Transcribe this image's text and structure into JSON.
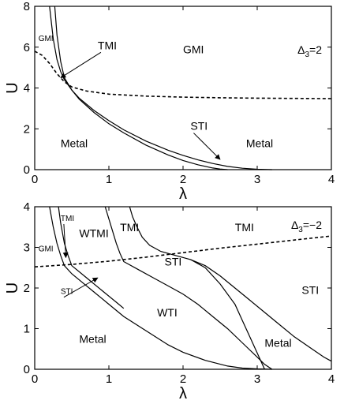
{
  "chart_data": [
    {
      "type": "line",
      "title": "",
      "xlabel": "λ",
      "ylabel": "U",
      "xlim": [
        0,
        4
      ],
      "ylim": [
        0,
        8
      ],
      "xticks": [
        "0",
        "1",
        "2",
        "3",
        "4"
      ],
      "yticks": [
        "0",
        "2",
        "4",
        "6",
        "8"
      ],
      "annotation": "Δ3=2",
      "regions": [
        {
          "label": "GMI",
          "x": 2.0,
          "y": 5.7
        },
        {
          "label": "Metal",
          "x": 0.35,
          "y": 1.1
        },
        {
          "label": "Metal",
          "x": 2.85,
          "y": 1.1
        },
        {
          "label": "TMI",
          "x": 0.85,
          "y": 5.9,
          "arrow_to": [
            0.35,
            4.5
          ]
        },
        {
          "label": "STI",
          "x": 2.1,
          "y": 1.95,
          "arrow_to": [
            2.5,
            0.5
          ]
        },
        {
          "label": "GMI",
          "x": 0.05,
          "y": 6.3,
          "small": true
        }
      ],
      "series": [
        {
          "style": "solid",
          "x": [
            0.2,
            0.25,
            0.3,
            0.35,
            0.4,
            0.5,
            0.6,
            0.8,
            1.0,
            1.2,
            1.5,
            1.8,
            2.0,
            2.2,
            2.4,
            2.6,
            2.8,
            3.0,
            3.2
          ],
          "y": [
            8,
            6.4,
            5.4,
            4.8,
            4.4,
            3.9,
            3.5,
            2.9,
            2.4,
            1.95,
            1.4,
            0.95,
            0.7,
            0.48,
            0.3,
            0.16,
            0.07,
            0.02,
            0
          ]
        },
        {
          "style": "solid",
          "x": [
            0.27,
            0.3,
            0.35,
            0.4,
            0.5,
            0.6,
            0.8,
            1.0,
            1.2,
            1.5,
            1.8,
            2.0,
            2.2,
            2.4,
            2.5,
            2.6
          ],
          "y": [
            8,
            6.6,
            5.3,
            4.5,
            3.9,
            3.45,
            2.8,
            2.25,
            1.8,
            1.2,
            0.72,
            0.45,
            0.24,
            0.08,
            0.03,
            0
          ]
        },
        {
          "style": "dashed",
          "x": [
            0,
            0.1,
            0.2,
            0.3,
            0.4,
            0.5,
            0.7,
            1.0,
            1.5,
            2.0,
            2.5,
            3.0,
            3.5,
            4.0
          ],
          "y": [
            5.8,
            5.6,
            5.2,
            4.7,
            4.3,
            4.05,
            3.85,
            3.7,
            3.6,
            3.55,
            3.52,
            3.5,
            3.49,
            3.48
          ]
        }
      ]
    },
    {
      "type": "line",
      "title": "",
      "xlabel": "λ",
      "ylabel": "U",
      "xlim": [
        0,
        4
      ],
      "ylim": [
        0,
        4
      ],
      "xticks": [
        "0",
        "1",
        "2",
        "3",
        "4"
      ],
      "yticks": [
        "0",
        "1",
        "2",
        "3",
        "4"
      ],
      "annotation": "Δ3=−2",
      "regions": [
        {
          "label": "TMI",
          "x": 2.7,
          "y": 3.4
        },
        {
          "label": "WTMI",
          "x": 0.6,
          "y": 3.25
        },
        {
          "label": "TMI",
          "x": 1.15,
          "y": 3.4
        },
        {
          "label": "STI",
          "x": 1.75,
          "y": 2.55
        },
        {
          "label": "STI",
          "x": 3.6,
          "y": 1.85
        },
        {
          "label": "WTI",
          "x": 1.65,
          "y": 1.3
        },
        {
          "label": "Metal",
          "x": 0.6,
          "y": 0.65
        },
        {
          "label": "Metal",
          "x": 3.1,
          "y": 0.55
        },
        {
          "label": "TMI",
          "x": 0.35,
          "y": 3.65,
          "arrow_to": [
            0.42,
            2.75
          ],
          "small": true
        },
        {
          "label": "GMI",
          "x": 0.05,
          "y": 2.9,
          "small": true
        },
        {
          "label": "STI",
          "x": 0.35,
          "y": 1.85,
          "arrow_to": [
            0.85,
            2.25
          ],
          "small": true
        }
      ],
      "series": [
        {
          "style": "solid",
          "x": [
            0.2,
            0.25,
            0.3,
            0.35,
            0.4,
            0.5,
            0.6,
            0.8,
            1.0,
            1.2,
            1.5,
            1.8,
            2.0,
            2.3,
            2.6,
            2.8,
            3.0,
            3.2
          ],
          "y": [
            4,
            3.5,
            3.1,
            2.8,
            2.55,
            2.35,
            2.2,
            1.9,
            1.6,
            1.3,
            0.95,
            0.6,
            0.42,
            0.22,
            0.08,
            0.03,
            0.01,
            0
          ]
        },
        {
          "style": "solid",
          "x": [
            0.32,
            0.35,
            0.4,
            0.45,
            0.5,
            0.7,
            0.9,
            1.1,
            1.2
          ],
          "y": [
            4,
            3.6,
            3.1,
            2.8,
            2.55,
            2.25,
            1.95,
            1.65,
            1.5
          ]
        },
        {
          "style": "solid",
          "x": [
            0.95,
            1.0,
            1.05,
            1.1,
            1.15,
            1.2,
            1.4,
            1.6,
            1.8,
            2.0,
            2.2,
            2.4,
            2.6,
            2.8,
            3.0,
            3.1,
            3.2
          ],
          "y": [
            4,
            3.7,
            3.4,
            3.1,
            2.85,
            2.65,
            2.45,
            2.25,
            2.05,
            1.85,
            1.6,
            1.3,
            1.0,
            0.65,
            0.3,
            0.12,
            0
          ]
        },
        {
          "style": "solid",
          "x": [
            1.28,
            1.32,
            1.38,
            1.45,
            1.55,
            1.7,
            1.9,
            2.1,
            2.3,
            2.5,
            2.7,
            2.8,
            2.9,
            3.0,
            3.1
          ],
          "y": [
            4,
            3.75,
            3.5,
            3.25,
            3.05,
            2.9,
            2.8,
            2.7,
            2.5,
            2.1,
            1.6,
            1.2,
            0.8,
            0.4,
            0
          ]
        },
        {
          "style": "solid",
          "x": [
            2.1,
            2.3,
            2.5,
            2.7,
            2.9,
            3.1,
            3.3,
            3.5,
            3.7,
            3.9,
            4.0
          ],
          "y": [
            2.7,
            2.55,
            2.3,
            2.0,
            1.7,
            1.4,
            1.1,
            0.8,
            0.55,
            0.3,
            0.2
          ]
        },
        {
          "style": "dashed",
          "x": [
            0,
            0.5,
            1.0,
            1.5,
            2.0,
            2.5,
            3.0,
            3.5,
            4.0
          ],
          "y": [
            2.52,
            2.58,
            2.66,
            2.76,
            2.87,
            2.98,
            3.08,
            3.18,
            3.28
          ]
        }
      ]
    }
  ]
}
